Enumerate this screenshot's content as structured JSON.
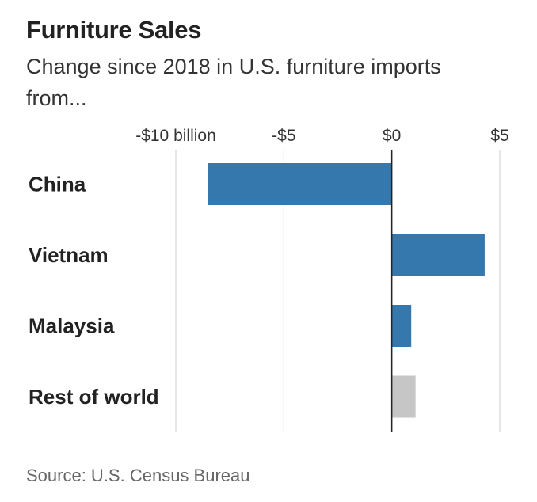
{
  "header": {
    "title": "Furniture Sales",
    "subtitle": "Change since 2018 in U.S. furniture imports from..."
  },
  "footer": {
    "source": "Source: U.S. Census Bureau"
  },
  "chart_data": {
    "type": "bar",
    "orientation": "horizontal",
    "title": "Furniture Sales",
    "subtitle": "Change since 2018 in U.S. furniture imports from...",
    "xlabel": "",
    "ylabel": "",
    "unit": "billion dollars",
    "xlim": [
      -10,
      5
    ],
    "ticks": [
      {
        "value": -10,
        "label": "-$10 billion"
      },
      {
        "value": -5,
        "label": "-$5"
      },
      {
        "value": 0,
        "label": "$0"
      },
      {
        "value": 5,
        "label": "$5"
      }
    ],
    "grid": true,
    "legend": "none",
    "categories": [
      "China",
      "Vietnam",
      "Malaysia",
      "Rest of world"
    ],
    "values": [
      -8.5,
      4.3,
      0.9,
      1.1
    ],
    "colors": [
      "#3578ad",
      "#3578ad",
      "#3578ad",
      "#c6c6c6"
    ]
  }
}
